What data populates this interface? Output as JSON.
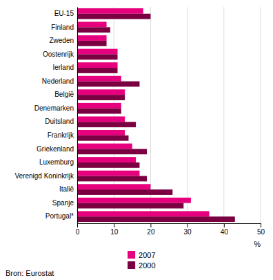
{
  "chart_data": {
    "type": "bar",
    "orientation": "horizontal",
    "categories": [
      "EU-15",
      "Finland",
      "Zweden",
      "Oostenrijk",
      "Ierland",
      "Nederland",
      "België",
      "Denemarken",
      "Duitsland",
      "Frankrijk",
      "Griekenland",
      "Luxemburg",
      "Verenigd Koninkrijk",
      "Italië",
      "Spanje",
      "Portugal*"
    ],
    "series": [
      {
        "name": "2007",
        "color": "#e6007e",
        "values": [
          18,
          8,
          8,
          11,
          11,
          12,
          13,
          12,
          13,
          13,
          15,
          16,
          17,
          20,
          31,
          36
        ]
      },
      {
        "name": "2000",
        "color": "#7b0041",
        "values": [
          20,
          9,
          8,
          11,
          11,
          17,
          13,
          12,
          16,
          14,
          19,
          17,
          19,
          26,
          29,
          43
        ]
      }
    ],
    "xlabel": "%",
    "xlim": [
      0,
      50
    ],
    "xticks": [
      0,
      10,
      20,
      30,
      40,
      50
    ],
    "grid": true,
    "legend": "bottom",
    "annotations": [
      "Bron: Eurostat"
    ]
  }
}
